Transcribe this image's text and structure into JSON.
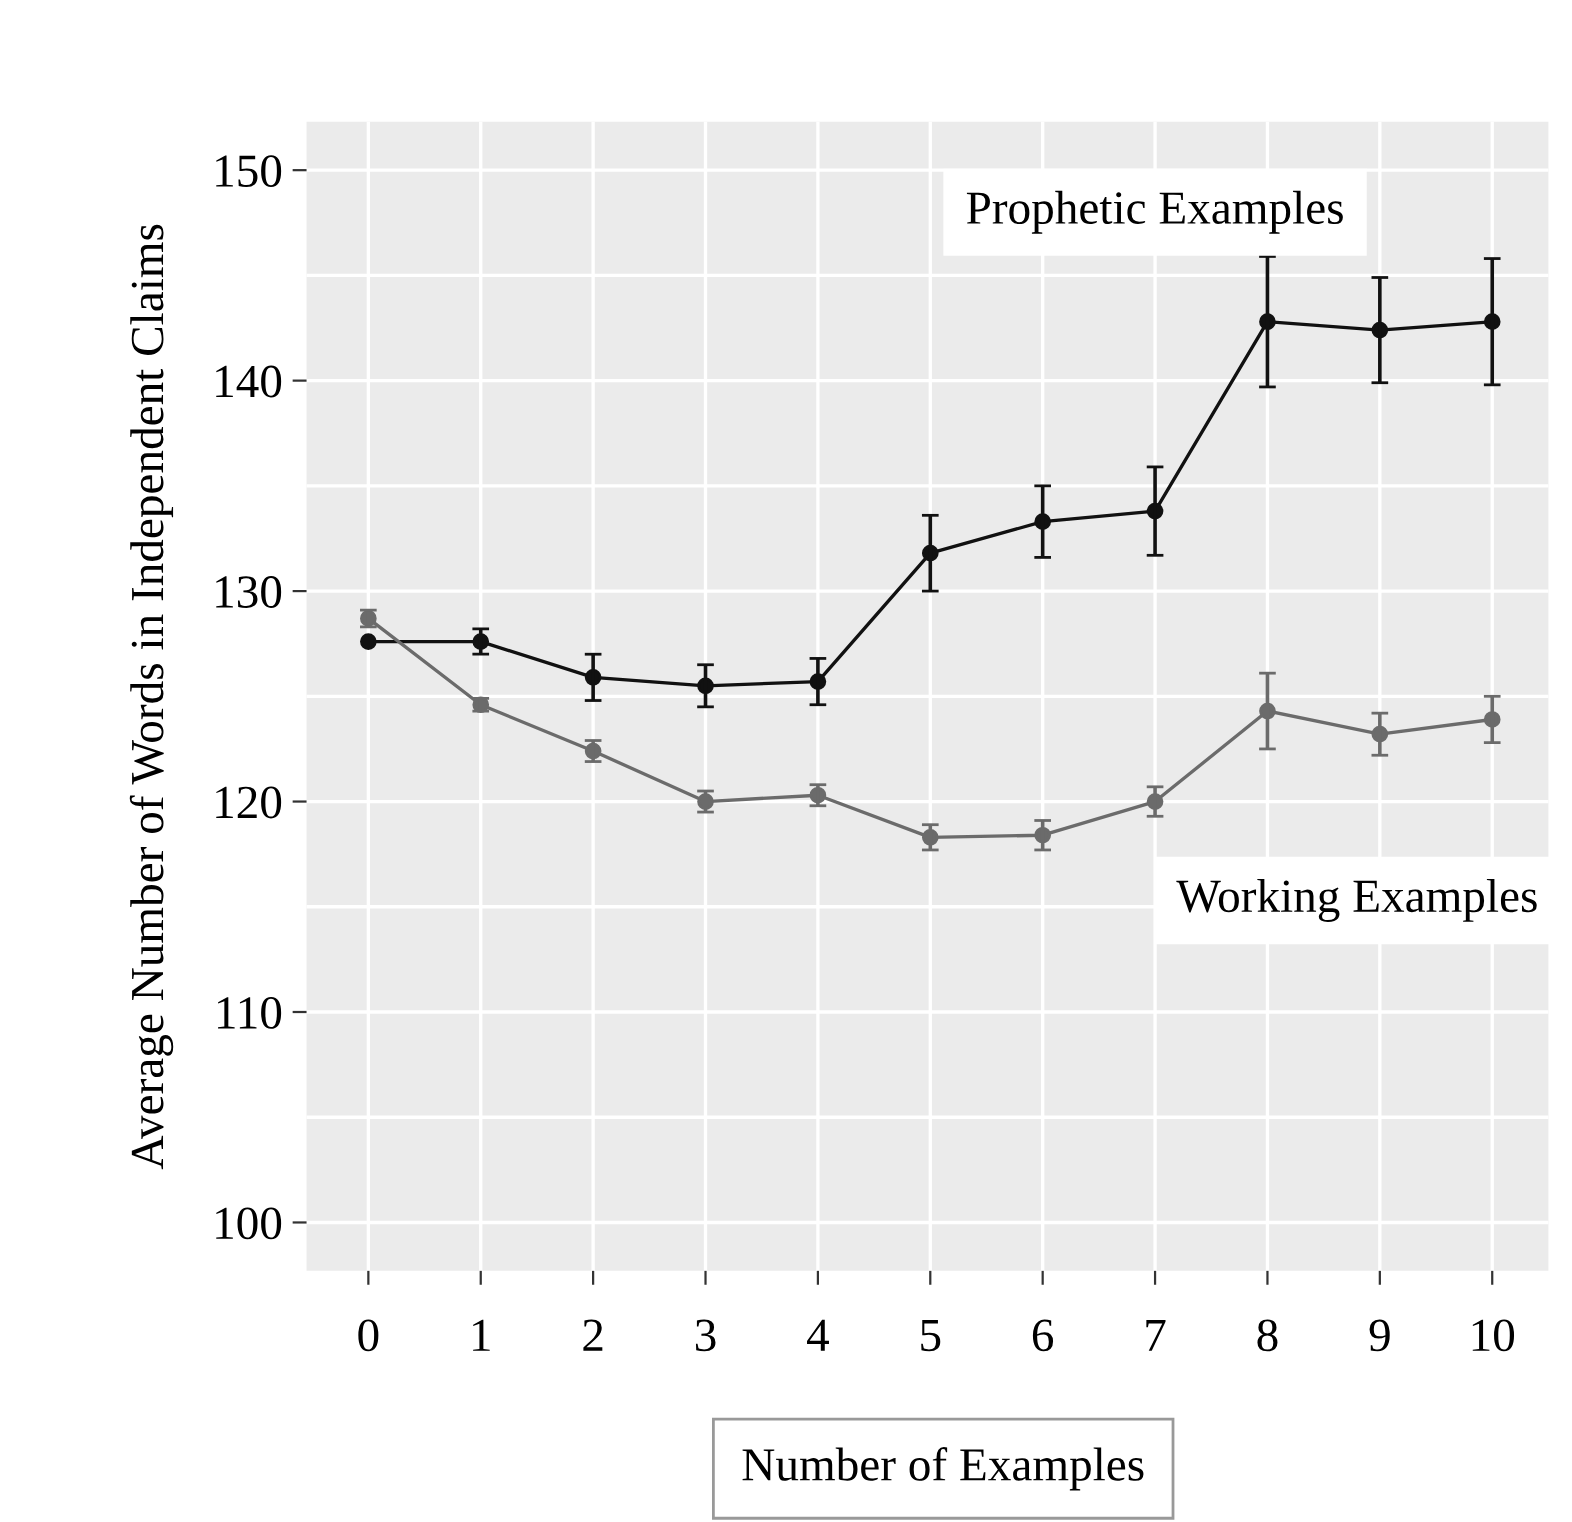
{
  "chart_data": {
    "type": "line",
    "xlabel": "Number of Examples",
    "ylabel": "Average Number of Words in Independent Claims",
    "categories": [
      "0",
      "1",
      "2",
      "3",
      "4",
      "5",
      "6",
      "7",
      "8",
      "9",
      "10"
    ],
    "series": [
      {
        "name": "Prophetic Examples",
        "color": "#111111",
        "values": [
          127.6,
          127.6,
          125.9,
          125.5,
          125.7,
          131.8,
          133.3,
          133.8,
          142.8,
          142.4,
          142.8
        ],
        "errors": [
          null,
          0.6,
          1.1,
          1.0,
          1.1,
          1.8,
          1.7,
          2.1,
          3.1,
          2.5,
          3.0
        ]
      },
      {
        "name": "Working Examples",
        "color": "#6b6b6b",
        "values": [
          128.7,
          124.6,
          122.4,
          120.0,
          120.3,
          118.3,
          118.4,
          120.0,
          124.3,
          123.2,
          123.9
        ],
        "errors": [
          0.4,
          0.3,
          0.5,
          0.5,
          0.5,
          0.6,
          0.7,
          0.7,
          1.8,
          1.0,
          1.1
        ]
      }
    ],
    "ylim": [
      97.7,
      152.3
    ],
    "yticks": [
      100,
      110,
      120,
      130,
      140,
      150
    ],
    "grid": true,
    "marker": "circle",
    "line_style": "solid"
  }
}
